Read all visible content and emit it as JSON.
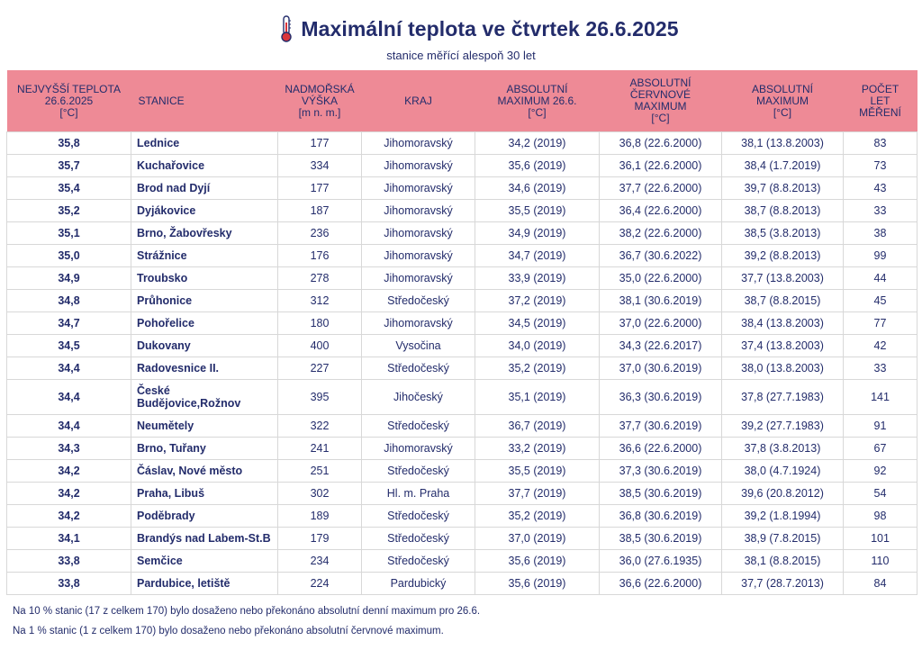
{
  "title": "Maximální teplota ve čtvrtek 26.6.2025",
  "subtitle": "stanice měřící alespoň 30 let",
  "icon": "thermometer-icon",
  "colors": {
    "header_bg": "#ee8a96",
    "text": "#232c6b",
    "thermometer": "#d9343b"
  },
  "table": {
    "headers": [
      [
        "NEJVYŠŠÍ TEPLOTA",
        "26.6.2025",
        "[°C]"
      ],
      [
        "STANICE"
      ],
      [
        "NADMOŘSKÁ",
        "VÝŠKA",
        "[m n. m.]"
      ],
      [
        "KRAJ"
      ],
      [
        "ABSOLUTNÍ",
        "MAXIMUM 26.6.",
        "[°C]"
      ],
      [
        "ABSOLUTNÍ",
        "ČERVNOVÉ",
        "MAXIMUM",
        "[°C]"
      ],
      [
        "ABSOLUTNÍ",
        "MAXIMUM",
        "[°C]"
      ],
      [
        "POČET",
        "LET",
        "MĚŘENÍ"
      ]
    ],
    "rows": [
      [
        "35,8",
        "Lednice",
        "177",
        "Jihomoravský",
        "34,2 (2019)",
        "36,8 (22.6.2000)",
        "38,1 (13.8.2003)",
        "83"
      ],
      [
        "35,7",
        "Kuchařovice",
        "334",
        "Jihomoravský",
        "35,6 (2019)",
        "36,1 (22.6.2000)",
        "38,4 (1.7.2019)",
        "73"
      ],
      [
        "35,4",
        "Brod nad Dyjí",
        "177",
        "Jihomoravský",
        "34,6 (2019)",
        "37,7 (22.6.2000)",
        "39,7 (8.8.2013)",
        "43"
      ],
      [
        "35,2",
        "Dyjákovice",
        "187",
        "Jihomoravský",
        "35,5 (2019)",
        "36,4 (22.6.2000)",
        "38,7 (8.8.2013)",
        "33"
      ],
      [
        "35,1",
        "Brno, Žabovřesky",
        "236",
        "Jihomoravský",
        "34,9 (2019)",
        "38,2 (22.6.2000)",
        "38,5 (3.8.2013)",
        "38"
      ],
      [
        "35,0",
        "Strážnice",
        "176",
        "Jihomoravský",
        "34,7 (2019)",
        "36,7 (30.6.2022)",
        "39,2 (8.8.2013)",
        "99"
      ],
      [
        "34,9",
        "Troubsko",
        "278",
        "Jihomoravský",
        "33,9 (2019)",
        "35,0 (22.6.2000)",
        "37,7 (13.8.2003)",
        "44"
      ],
      [
        "34,8",
        "Průhonice",
        "312",
        "Středočeský",
        "37,2 (2019)",
        "38,1 (30.6.2019)",
        "38,7 (8.8.2015)",
        "45"
      ],
      [
        "34,7",
        "Pohořelice",
        "180",
        "Jihomoravský",
        "34,5 (2019)",
        "37,0 (22.6.2000)",
        "38,4 (13.8.2003)",
        "77"
      ],
      [
        "34,5",
        "Dukovany",
        "400",
        "Vysočina",
        "34,0 (2019)",
        "34,3 (22.6.2017)",
        "37,4 (13.8.2003)",
        "42"
      ],
      [
        "34,4",
        "Radovesnice II.",
        "227",
        "Středočeský",
        "35,2 (2019)",
        "37,0 (30.6.2019)",
        "38,0 (13.8.2003)",
        "33"
      ],
      [
        "34,4",
        "České Budějovice,Rožnov",
        "395",
        "Jihočeský",
        "35,1 (2019)",
        "36,3 (30.6.2019)",
        "37,8 (27.7.1983)",
        "141"
      ],
      [
        "34,4",
        "Neumětely",
        "322",
        "Středočeský",
        "36,7 (2019)",
        "37,7 (30.6.2019)",
        "39,2 (27.7.1983)",
        "91"
      ],
      [
        "34,3",
        "Brno, Tuřany",
        "241",
        "Jihomoravský",
        "33,2 (2019)",
        "36,6 (22.6.2000)",
        "37,8 (3.8.2013)",
        "67"
      ],
      [
        "34,2",
        "Čáslav, Nové město",
        "251",
        "Středočeský",
        "35,5 (2019)",
        "37,3 (30.6.2019)",
        "38,0 (4.7.1924)",
        "92"
      ],
      [
        "34,2",
        "Praha, Libuš",
        "302",
        "Hl. m. Praha",
        "37,7 (2019)",
        "38,5 (30.6.2019)",
        "39,6 (20.8.2012)",
        "54"
      ],
      [
        "34,2",
        "Poděbrady",
        "189",
        "Středočeský",
        "35,2 (2019)",
        "36,8 (30.6.2019)",
        "39,2 (1.8.1994)",
        "98"
      ],
      [
        "34,1",
        "Brandýs nad Labem-St.B",
        "179",
        "Středočeský",
        "37,0 (2019)",
        "38,5 (30.6.2019)",
        "38,9 (7.8.2015)",
        "101"
      ],
      [
        "33,8",
        "Semčice",
        "234",
        "Středočeský",
        "35,6 (2019)",
        "36,0 (27.6.1935)",
        "38,1 (8.8.2015)",
        "110"
      ],
      [
        "33,8",
        "Pardubice, letiště",
        "224",
        "Pardubický",
        "35,6 (2019)",
        "36,6 (22.6.2000)",
        "37,7 (28.7.2013)",
        "84"
      ]
    ]
  },
  "notes": [
    "Na 10 % stanic (17 z celkem 170) bylo dosaženo nebo překonáno absolutní denní maximum pro 26.6.",
    "Na 1 % stanic (1 z celkem 170) bylo dosaženo nebo překonáno absolutní červnové maximum."
  ]
}
